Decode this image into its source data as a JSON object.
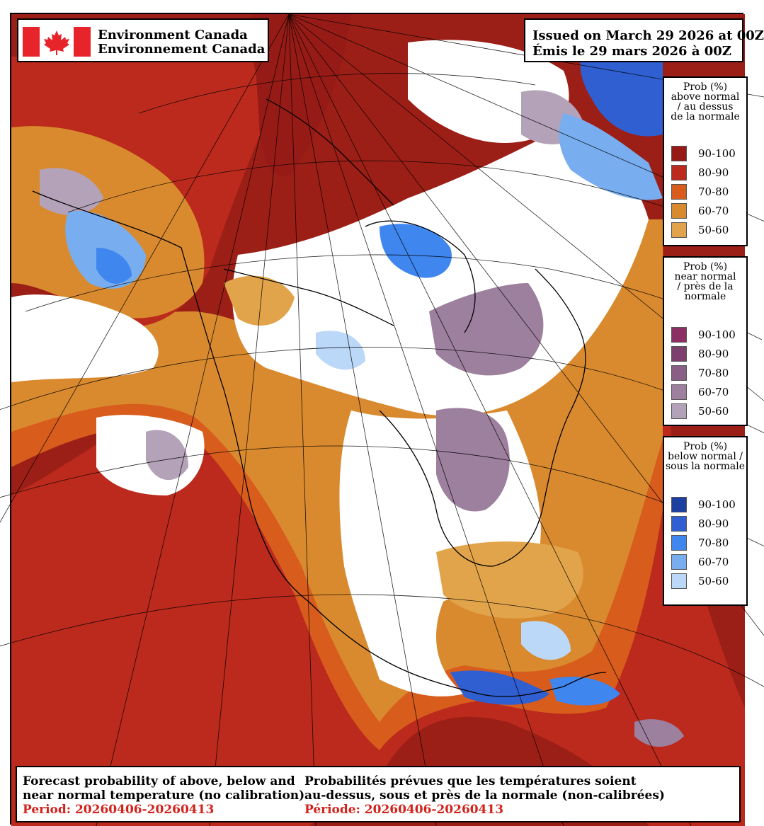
{
  "header": {
    "agency_en": "Environment Canada",
    "agency_fr": "Environnement Canada",
    "issued_en": "Issued on March 29 2026 at 00Z",
    "issued_fr": "Émis le 29 mars 2026 à 00Z"
  },
  "legends": [
    {
      "title": [
        "Prob (%)",
        "above normal",
        "/ au dessus",
        "de la normale"
      ],
      "classes": [
        {
          "label": "90-100",
          "color": "#961b16"
        },
        {
          "label": "80-90",
          "color": "#bb2a1c"
        },
        {
          "label": "70-80",
          "color": "#d85c1c"
        },
        {
          "label": "60-70",
          "color": "#d98a2e"
        },
        {
          "label": "50-60",
          "color": "#e2a44a"
        }
      ]
    },
    {
      "title": [
        "Prob (%)",
        "near normal",
        "/ près de la",
        "normale"
      ],
      "classes": [
        {
          "label": "90-100",
          "color": "#8c2f64"
        },
        {
          "label": "80-90",
          "color": "#7d3f6d"
        },
        {
          "label": "70-80",
          "color": "#8a5f86"
        },
        {
          "label": "60-70",
          "color": "#9d7f9e"
        },
        {
          "label": "50-60",
          "color": "#b4a2b9"
        }
      ]
    },
    {
      "title": [
        "Prob (%)",
        "below normal /",
        "sous la normale"
      ],
      "classes": [
        {
          "label": "90-100",
          "color": "#1c3fa0"
        },
        {
          "label": "80-90",
          "color": "#2f5fd0"
        },
        {
          "label": "70-80",
          "color": "#3f86ef"
        },
        {
          "label": "60-70",
          "color": "#78aeef"
        },
        {
          "label": "50-60",
          "color": "#bcd8f8"
        }
      ]
    }
  ],
  "footer": {
    "en_line1": "Forecast probability of above, below and",
    "en_line2": "near normal temperature (no calibration)",
    "en_period": "Period: 20260406-20260413",
    "fr_line1": "Probabilités prévues que les températures soient",
    "fr_line2": "au-dessus, sous et près de la normale (non-calibrées)",
    "fr_period": "Période: 20260406-20260413"
  }
}
